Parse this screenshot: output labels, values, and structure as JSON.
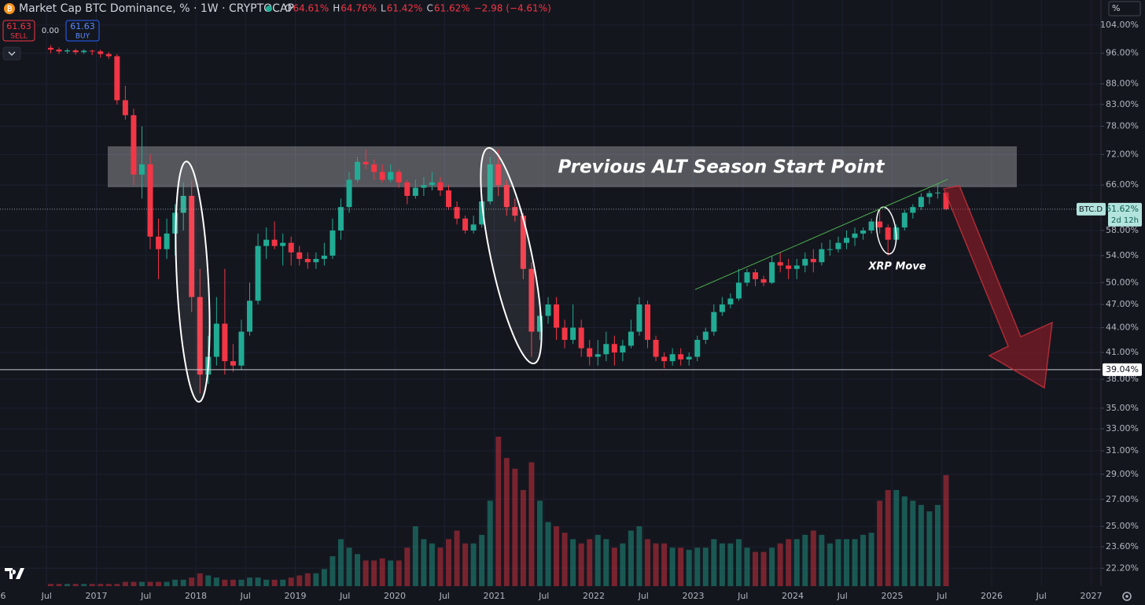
{
  "chart_data": {
    "type": "candlestick",
    "title": "Market Cap BTC Dominance, % · 1W · CRYPTOCAP",
    "ohlc_header": [
      {
        "key": "O",
        "value": "64.61%"
      },
      {
        "key": "H",
        "value": "64.76%"
      },
      {
        "key": "L",
        "value": "61.42%"
      },
      {
        "key": "C",
        "value": "61.62%"
      }
    ],
    "change": "−2.98 (−4.61%)",
    "trade_buttons": {
      "sell_price": "61.63",
      "sell": "SELL",
      "spread": "0.00",
      "buy_price": "61.63",
      "buy": "BUY"
    },
    "axis_unit": "%",
    "log_scale": true,
    "grid": true,
    "up_color": "#22ab94",
    "down_color": "#f23645",
    "x": [
      "2016-07",
      "2016-08",
      "2016-09",
      "2016-10",
      "2016-11",
      "2016-12",
      "2017-01",
      "2017-02",
      "2017-03",
      "2017-04",
      "2017-05",
      "2017-06",
      "2017-07",
      "2017-08",
      "2017-09",
      "2017-10",
      "2017-11",
      "2017-12",
      "2018-01",
      "2018-02",
      "2018-03",
      "2018-04",
      "2018-05",
      "2018-06",
      "2018-07",
      "2018-08",
      "2018-09",
      "2018-10",
      "2018-11",
      "2018-12",
      "2019-01",
      "2019-02",
      "2019-03",
      "2019-04",
      "2019-05",
      "2019-06",
      "2019-07",
      "2019-08",
      "2019-09",
      "2019-10",
      "2019-11",
      "2019-12",
      "2020-01",
      "2020-02",
      "2020-03",
      "2020-04",
      "2020-05",
      "2020-06",
      "2020-07",
      "2020-08",
      "2020-09",
      "2020-10",
      "2020-11",
      "2020-12",
      "2021-01",
      "2021-02",
      "2021-03",
      "2021-04",
      "2021-05",
      "2021-06",
      "2021-07",
      "2021-08",
      "2021-09",
      "2021-10",
      "2021-11",
      "2021-12",
      "2022-01",
      "2022-02",
      "2022-03",
      "2022-04",
      "2022-05",
      "2022-06",
      "2022-07",
      "2022-08",
      "2022-09",
      "2022-10",
      "2022-11",
      "2022-12",
      "2023-01",
      "2023-02",
      "2023-03",
      "2023-04",
      "2023-05",
      "2023-06",
      "2023-07",
      "2023-08",
      "2023-09",
      "2023-10",
      "2023-11",
      "2023-12",
      "2024-01",
      "2024-02",
      "2024-03",
      "2024-04",
      "2024-05",
      "2024-06",
      "2024-07",
      "2024-08",
      "2024-09",
      "2024-10",
      "2024-11",
      "2024-12",
      "2025-01",
      "2025-02",
      "2025-03",
      "2025-04",
      "2025-05",
      "2025-06",
      "2025-07"
    ],
    "open": [
      97.5,
      97.0,
      96.5,
      96.8,
      96.3,
      96.7,
      96.5,
      95.8,
      95.2,
      84.0,
      80.5,
      68.0,
      70.0,
      57.0,
      55.0,
      57.5,
      61.0,
      64.0,
      48.0,
      38.5,
      40.5,
      44.5,
      40.0,
      39.5,
      43.5,
      47.5,
      55.5,
      56.5,
      55.5,
      56.0,
      54.5,
      53.5,
      53.0,
      53.5,
      54.0,
      58.0,
      62.0,
      67.0,
      70.5,
      70.0,
      68.5,
      67.0,
      68.5,
      66.5,
      64.0,
      65.5,
      66.0,
      66.5,
      65.0,
      62.0,
      60.0,
      58.0,
      59.0,
      63.0,
      70.0,
      66.0,
      62.0,
      60.5,
      52.0,
      43.5,
      45.5,
      47.0,
      44.0,
      42.5,
      44.0,
      41.5,
      40.5,
      40.8,
      42.0,
      41.0,
      41.8,
      43.5,
      47.0,
      42.5,
      40.5,
      40.0,
      40.8,
      40.2,
      40.5,
      42.5,
      43.5,
      46.0,
      47.0,
      47.8,
      50.0,
      51.5,
      50.5,
      50.0,
      53.0,
      52.5,
      52.0,
      52.5,
      53.5,
      53.0,
      55.0,
      55.0,
      56.0,
      56.8,
      57.5,
      58.0,
      59.5,
      58.5,
      56.5,
      58.5,
      61.0,
      62.0,
      63.8,
      64.5,
      64.61
    ],
    "high": [
      98.2,
      97.6,
      97.3,
      97.2,
      97.1,
      97.0,
      97.0,
      96.3,
      95.8,
      87.5,
      82.0,
      78.0,
      72.0,
      60.0,
      60.0,
      62.5,
      66.5,
      67.0,
      52.0,
      43.0,
      48.0,
      52.0,
      42.0,
      45.0,
      50.0,
      57.5,
      58.5,
      59.5,
      57.5,
      57.0,
      55.5,
      54.5,
      54.5,
      56.0,
      60.0,
      63.5,
      68.5,
      71.5,
      73.0,
      71.0,
      70.0,
      70.0,
      69.0,
      67.0,
      67.0,
      67.5,
      68.5,
      67.5,
      66.0,
      63.0,
      60.5,
      60.5,
      64.0,
      71.5,
      73.0,
      67.0,
      63.5,
      61.0,
      53.0,
      47.5,
      48.0,
      48.0,
      45.0,
      47.0,
      45.0,
      42.5,
      42.5,
      43.5,
      43.0,
      42.5,
      45.0,
      48.0,
      47.5,
      43.0,
      41.0,
      41.5,
      41.5,
      41.0,
      43.0,
      44.0,
      47.0,
      48.0,
      48.5,
      52.0,
      52.0,
      52.0,
      51.0,
      54.0,
      54.5,
      53.5,
      53.5,
      54.5,
      55.0,
      56.0,
      56.5,
      57.0,
      58.0,
      58.5,
      58.5,
      60.0,
      61.5,
      59.0,
      59.0,
      61.5,
      62.5,
      64.5,
      65.0,
      66.3,
      64.76
    ],
    "low": [
      96.0,
      95.8,
      95.9,
      95.6,
      95.8,
      95.5,
      94.8,
      94.5,
      83.0,
      79.5,
      66.0,
      63.5,
      55.0,
      50.5,
      53.5,
      54.0,
      58.0,
      46.0,
      36.5,
      37.5,
      39.5,
      38.5,
      38.8,
      39.0,
      43.0,
      47.0,
      53.5,
      55.0,
      52.5,
      52.5,
      52.5,
      52.0,
      52.0,
      52.5,
      53.5,
      56.5,
      61.0,
      66.5,
      69.0,
      67.0,
      66.5,
      66.5,
      65.5,
      62.5,
      63.5,
      64.0,
      65.0,
      64.0,
      61.5,
      59.0,
      57.5,
      57.5,
      58.5,
      62.5,
      64.0,
      60.5,
      59.5,
      50.5,
      40.5,
      42.5,
      44.5,
      42.5,
      41.5,
      42.0,
      40.5,
      39.5,
      39.5,
      40.0,
      39.5,
      40.0,
      41.5,
      43.0,
      41.5,
      40.0,
      39.2,
      39.5,
      39.5,
      39.5,
      40.0,
      42.0,
      43.0,
      45.5,
      46.5,
      47.5,
      49.5,
      49.5,
      49.5,
      49.8,
      51.5,
      50.5,
      50.5,
      51.5,
      51.5,
      52.5,
      54.0,
      54.5,
      55.0,
      55.5,
      56.5,
      57.5,
      57.5,
      54.0,
      56.0,
      58.0,
      60.0,
      61.5,
      62.5,
      63.5,
      61.42
    ],
    "close": [
      97.0,
      96.5,
      96.8,
      96.3,
      96.7,
      96.5,
      95.8,
      95.2,
      84.0,
      80.5,
      68.0,
      70.0,
      57.0,
      55.0,
      57.5,
      61.0,
      64.0,
      48.0,
      38.5,
      40.5,
      44.5,
      40.0,
      39.5,
      43.5,
      47.5,
      55.5,
      56.5,
      55.5,
      56.0,
      54.5,
      53.5,
      53.0,
      53.5,
      54.0,
      58.0,
      62.0,
      67.0,
      70.5,
      70.0,
      68.5,
      67.0,
      68.5,
      66.5,
      64.0,
      65.5,
      66.0,
      66.5,
      65.0,
      62.0,
      60.0,
      58.0,
      59.0,
      63.0,
      70.0,
      66.0,
      62.0,
      60.5,
      52.0,
      43.5,
      45.5,
      47.0,
      44.0,
      42.5,
      44.0,
      41.5,
      40.5,
      40.8,
      42.0,
      41.0,
      41.8,
      43.5,
      47.0,
      42.5,
      40.5,
      40.0,
      40.8,
      40.2,
      40.5,
      42.5,
      43.5,
      46.0,
      47.0,
      47.8,
      50.0,
      51.5,
      50.5,
      50.0,
      53.0,
      52.5,
      52.0,
      52.5,
      53.5,
      53.0,
      55.0,
      55.0,
      56.0,
      56.8,
      57.5,
      58.0,
      59.5,
      58.5,
      56.5,
      58.5,
      61.0,
      62.0,
      63.8,
      64.5,
      64.61,
      61.62
    ],
    "volume": [
      1,
      1,
      1,
      1,
      1,
      1,
      1,
      1,
      1,
      2,
      2,
      2,
      2,
      2,
      2,
      3,
      3,
      4,
      6,
      5,
      4,
      3,
      3,
      3,
      4,
      4,
      3,
      3,
      3,
      4,
      5,
      6,
      6,
      8,
      14,
      22,
      18,
      15,
      12,
      12,
      13,
      12,
      12,
      18,
      28,
      22,
      20,
      18,
      22,
      26,
      20,
      20,
      24,
      40,
      70,
      60,
      55,
      45,
      58,
      40,
      30,
      28,
      25,
      22,
      20,
      22,
      24,
      22,
      18,
      20,
      26,
      28,
      22,
      20,
      20,
      18,
      18,
      17,
      18,
      18,
      22,
      20,
      20,
      22,
      18,
      16,
      16,
      18,
      20,
      22,
      22,
      24,
      26,
      24,
      20,
      22,
      22,
      22,
      24,
      25,
      40,
      45,
      45,
      42,
      40,
      38,
      35,
      38,
      52
    ],
    "xlim": [
      "2016-01",
      "2027-02"
    ],
    "xticks": [
      {
        "value": "2016-01",
        "label": "6"
      },
      {
        "value": "2016-07",
        "label": "Jul"
      },
      {
        "value": "2017-01",
        "label": "2017"
      },
      {
        "value": "2017-07",
        "label": "Jul"
      },
      {
        "value": "2018-01",
        "label": "2018"
      },
      {
        "value": "2018-07",
        "label": "Jul"
      },
      {
        "value": "2019-01",
        "label": "2019"
      },
      {
        "value": "2019-07",
        "label": "Jul"
      },
      {
        "value": "2020-01",
        "label": "2020"
      },
      {
        "value": "2020-07",
        "label": "Jul"
      },
      {
        "value": "2021-01",
        "label": "2021"
      },
      {
        "value": "2021-07",
        "label": "Jul"
      },
      {
        "value": "2022-01",
        "label": "2022"
      },
      {
        "value": "2022-07",
        "label": "Jul"
      },
      {
        "value": "2023-01",
        "label": "2023"
      },
      {
        "value": "2023-07",
        "label": "Jul"
      },
      {
        "value": "2024-01",
        "label": "2024"
      },
      {
        "value": "2024-07",
        "label": "Jul"
      },
      {
        "value": "2025-01",
        "label": "2025"
      },
      {
        "value": "2025-07",
        "label": "Jul"
      },
      {
        "value": "2026-01",
        "label": "2026"
      },
      {
        "value": "2026-07",
        "label": "Jul"
      },
      {
        "value": "2027-01",
        "label": "2027"
      }
    ],
    "ylim": [
      21.1,
      111.7
    ],
    "yticks": [
      {
        "value": 104,
        "label": "104.00%"
      },
      {
        "value": 96,
        "label": "96.00%"
      },
      {
        "value": 88,
        "label": "88.00%"
      },
      {
        "value": 83,
        "label": "83.00%"
      },
      {
        "value": 78,
        "label": "78.00%"
      },
      {
        "value": 72,
        "label": "72.00%"
      },
      {
        "value": 66,
        "label": "66.00%"
      },
      {
        "value": 58,
        "label": "58.00%"
      },
      {
        "value": 54,
        "label": "54.00%"
      },
      {
        "value": 50,
        "label": "50.00%"
      },
      {
        "value": 47,
        "label": "47.00%"
      },
      {
        "value": 44,
        "label": "44.00%"
      },
      {
        "value": 41,
        "label": "41.00%"
      },
      {
        "value": 38,
        "label": "38.00%"
      },
      {
        "value": 35,
        "label": "35.00%"
      },
      {
        "value": 33,
        "label": "33.00%"
      },
      {
        "value": 31,
        "label": "31.00%"
      },
      {
        "value": 29,
        "label": "29.00%"
      },
      {
        "value": 27,
        "label": "27.00%"
      },
      {
        "value": 25,
        "label": "25.00%"
      },
      {
        "value": 23.6,
        "label": "23.60%"
      },
      {
        "value": 22.2,
        "label": "22.20%"
      }
    ],
    "last_price": {
      "symbol": "BTC.D",
      "value": 61.62,
      "label": "61.62%",
      "countdown": "2d 12h"
    },
    "horizontal_line": {
      "value": 39.04,
      "label": "39.04%"
    },
    "annotations": {
      "zone": "Previous ALT Season Start Point",
      "note": "XRP Move"
    }
  }
}
